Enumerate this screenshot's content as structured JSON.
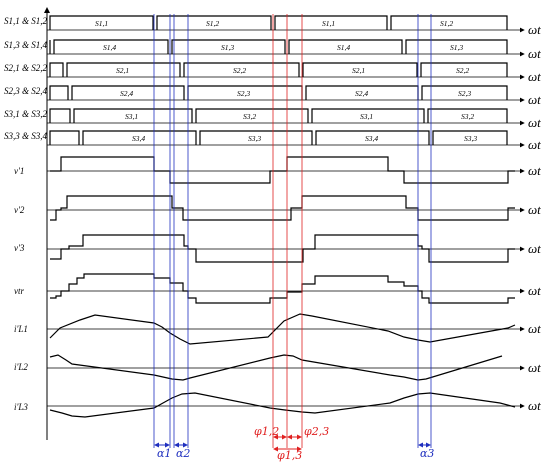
{
  "figure": {
    "omega_t": "ωt",
    "rows": [
      {
        "label": "S1,1 & S1,2",
        "kind": "gate",
        "segs": [
          "S1,1",
          "S1,2",
          "S1,1",
          "S1,2"
        ]
      },
      {
        "label": "S1,3 & S1,4",
        "kind": "gate",
        "segs": [
          "S1,4",
          "S1,3",
          "S1,4",
          "S1,3"
        ]
      },
      {
        "label": "S2,1 & S2,2",
        "kind": "gate",
        "segs": [
          "S2,1",
          "S2,2",
          "S2,1",
          "S2,2"
        ]
      },
      {
        "label": "S2,3 & S2,4",
        "kind": "gate",
        "segs": [
          "S2,4",
          "S2,3",
          "S2,4",
          "S2,3"
        ]
      },
      {
        "label": "S3,1 & S3,2",
        "kind": "gate",
        "segs": [
          "S3,1",
          "S3,2",
          "S3,1",
          "S3,2"
        ]
      },
      {
        "label": "S3,3 & S3,4",
        "kind": "gate",
        "segs": [
          "S3,4",
          "S3,3",
          "S3,4",
          "S3,3"
        ]
      },
      {
        "label": "v'1",
        "kind": "wave"
      },
      {
        "label": "v'2",
        "kind": "wave"
      },
      {
        "label": "v'3",
        "kind": "wave"
      },
      {
        "label": "vtr",
        "kind": "wave"
      },
      {
        "label": "i'L1",
        "kind": "wave"
      },
      {
        "label": "i'L2",
        "kind": "wave"
      },
      {
        "label": "i'L3",
        "kind": "wave"
      }
    ],
    "annotations": {
      "alpha1": "α1",
      "alpha2": "α2",
      "alpha3": "α3",
      "phi12": "φ1,2",
      "phi23": "φ2,3",
      "phi13": "φ1,3"
    },
    "colors": {
      "axis": "#000000",
      "alpha": "#1f2fbf",
      "phi": "#e02020"
    }
  }
}
